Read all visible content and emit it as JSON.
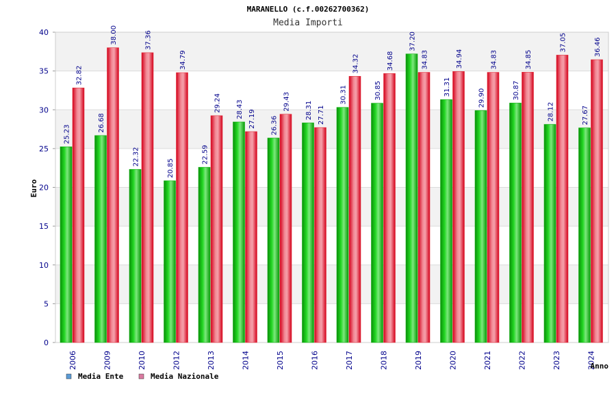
{
  "colors": {
    "ente_bar": "#0fae0f",
    "nazionale_bar": "#e0303c",
    "legend_ente": "#5b9bd5",
    "legend_nazionale": "#d97aa0",
    "tick_text": "#00008b",
    "band": "#f2f2f2",
    "grid": "#dcdcdc"
  },
  "chart_data": {
    "type": "bar",
    "title": "MARANELLO (c.f.00262700362)",
    "subtitle": "Media Importi",
    "xlabel": "Anno",
    "ylabel": "Euro",
    "ylim": [
      0,
      40
    ],
    "yticks": [
      "0",
      "5",
      "10",
      "15",
      "20",
      "25",
      "30",
      "35",
      "40"
    ],
    "categories": [
      "2006",
      "2009",
      "2010",
      "2012",
      "2013",
      "2014",
      "2015",
      "2016",
      "2017",
      "2018",
      "2019",
      "2020",
      "2021",
      "2022",
      "2023",
      "2024"
    ],
    "series": [
      {
        "name": "Media Ente",
        "values": [
          25.23,
          26.68,
          22.32,
          20.85,
          22.59,
          28.43,
          26.36,
          28.31,
          30.31,
          30.85,
          37.2,
          31.31,
          29.9,
          30.87,
          28.12,
          27.67
        ],
        "labels": [
          "25.23",
          "26.68",
          "22.32",
          "20.85",
          "22.59",
          "28.43",
          "26.36",
          "28.31",
          "30.31",
          "30.85",
          "37.20",
          "31.31",
          "29.90",
          "30.87",
          "28.12",
          "27.67"
        ]
      },
      {
        "name": "Media Nazionale",
        "values": [
          32.82,
          38.0,
          37.36,
          34.79,
          29.24,
          27.19,
          29.43,
          27.71,
          34.32,
          34.68,
          34.83,
          34.94,
          34.83,
          34.85,
          37.05,
          36.46
        ],
        "labels": [
          "32.82",
          "38.00",
          "37.36",
          "34.79",
          "29.24",
          "27.19",
          "29.43",
          "27.71",
          "34.32",
          "34.68",
          "34.83",
          "34.94",
          "34.83",
          "34.85",
          "37.05",
          "36.46"
        ]
      }
    ],
    "legend": [
      "Media Ente",
      "Media Nazionale"
    ],
    "legend_position": "bottom-left",
    "grid": true
  }
}
